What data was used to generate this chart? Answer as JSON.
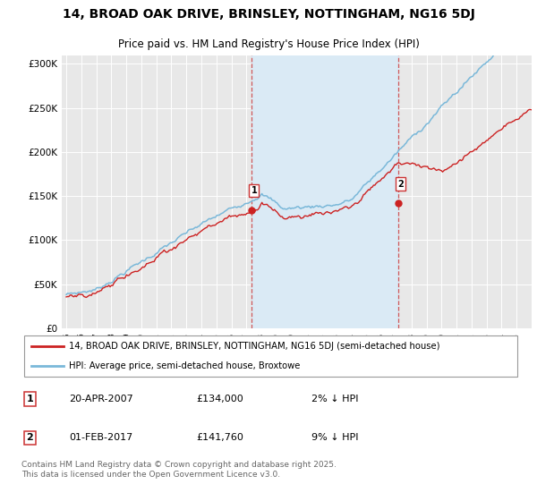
{
  "title_line1": "14, BROAD OAK DRIVE, BRINSLEY, NOTTINGHAM, NG16 5DJ",
  "title_line2": "Price paid vs. HM Land Registry's House Price Index (HPI)",
  "ylim": [
    0,
    310000
  ],
  "yticks": [
    0,
    50000,
    100000,
    150000,
    200000,
    250000,
    300000
  ],
  "ytick_labels": [
    "£0",
    "£50K",
    "£100K",
    "£150K",
    "£200K",
    "£250K",
    "£300K"
  ],
  "sale1_year": 2007.31,
  "sale1_price": 134000,
  "sale2_year": 2017.09,
  "sale2_price": 141760,
  "hpi_color": "#7ab8d9",
  "price_color": "#cc2222",
  "shade_color": "#daeaf5",
  "vline_color": "#cc3333",
  "legend_label_price": "14, BROAD OAK DRIVE, BRINSLEY, NOTTINGHAM, NG16 5DJ (semi-detached house)",
  "legend_label_hpi": "HPI: Average price, semi-detached house, Broxtowe",
  "footer_text": "Contains HM Land Registry data © Crown copyright and database right 2025.\nThis data is licensed under the Open Government Licence v3.0.",
  "background_color": "#ffffff",
  "plot_bg_color": "#e8e8e8"
}
